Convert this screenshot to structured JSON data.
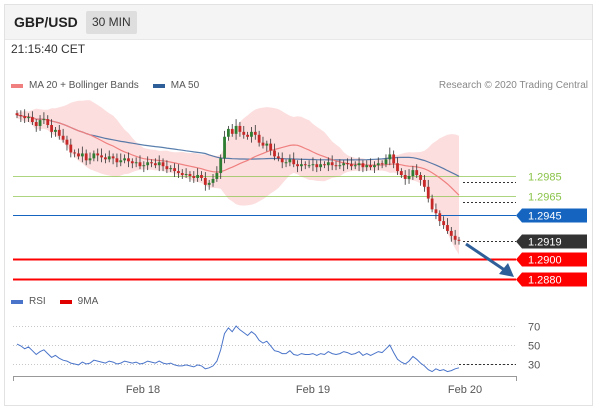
{
  "header": {
    "pair": "GBP/USD",
    "timeframe": "30 MIN"
  },
  "clock": "21:15:40 CET",
  "legend": [
    {
      "label": "MA 20 + Bollinger Bands",
      "color": "#f08080"
    },
    {
      "label": "MA 50",
      "color": "#2f5f98"
    }
  ],
  "credit": "Research © 2020 Trading Central",
  "rsi_legend": [
    {
      "label": "RSI",
      "color": "#4a74c9"
    },
    {
      "label": "9MA",
      "color": "#e00000"
    }
  ],
  "colors": {
    "up": "#2e7d32",
    "down": "#c62828",
    "band": "#fbd3d3",
    "ma20": "#f08080",
    "ma50": "#2f5f98",
    "support": "#ff0000",
    "resistance": "#8bc34a",
    "pivot": "#1565c0",
    "current": "#333333",
    "arrow": "#2f5f98"
  },
  "chart_data": [
    {
      "type": "candlestick",
      "x_tick_labels": [
        "Feb 18",
        "Feb 19",
        "Feb 20"
      ],
      "y_range": [
        1.287,
        1.3065
      ],
      "levels": [
        {
          "label": "1.2985",
          "value": 1.2985,
          "kind": "resistance",
          "color": "#8bc34a"
        },
        {
          "label": "1.2965",
          "value": 1.2965,
          "kind": "resistance",
          "color": "#8bc34a"
        },
        {
          "label": "1.2945",
          "value": 1.2945,
          "kind": "pivot",
          "color": "#1565c0"
        },
        {
          "label": "1.2919",
          "value": 1.2919,
          "kind": "current",
          "color": "#333333"
        },
        {
          "label": "1.2900",
          "value": 1.29,
          "kind": "support",
          "color": "#ff0000"
        },
        {
          "label": "1.2880",
          "value": 1.288,
          "kind": "support",
          "color": "#ff0000"
        }
      ],
      "close": [
        1.3047,
        1.3046,
        1.3044,
        1.3045,
        1.304,
        1.3036,
        1.3042,
        1.3043,
        1.3037,
        1.303,
        1.3032,
        1.3026,
        1.3022,
        1.3017,
        1.3009,
        1.3008,
        1.3005,
        1.3008,
        1.3001,
        1.3003,
        1.3008,
        1.3006,
        1.3004,
        1.3002,
        1.3005,
        1.3003,
        1.2999,
        1.3001,
        1.3003,
        1.3,
        1.2998,
        1.2999,
        1.2995,
        1.2996,
        1.2999,
        1.2998,
        1.2996,
        1.2999,
        1.2995,
        1.2992,
        1.2993,
        1.299,
        1.2988,
        1.2986,
        1.2987,
        1.2985,
        1.2983,
        1.2986,
        1.2983,
        1.2976,
        1.2978,
        1.2982,
        1.2988,
        1.3003,
        1.3025,
        1.3033,
        1.3028,
        1.3036,
        1.303,
        1.3027,
        1.3025,
        1.303,
        1.3027,
        1.3019,
        1.3016,
        1.3018,
        1.3011,
        1.3005,
        1.3003,
        1.2999,
        1.2999,
        1.3002,
        1.2997,
        1.2995,
        1.2997,
        1.2996,
        1.2996,
        1.2997,
        1.2994,
        1.2997,
        1.2996,
        1.2999,
        1.2996,
        1.2995,
        1.2996,
        1.2998,
        1.2997,
        1.2995,
        1.2996,
        1.2998,
        1.2994,
        1.2996,
        1.2994,
        1.2996,
        1.2998,
        1.2997,
        1.3002,
        1.3007,
        1.2998,
        1.299,
        1.2986,
        1.2982,
        1.2985,
        1.2991,
        1.2986,
        1.2981,
        1.2974,
        1.2962,
        1.2951,
        1.2947,
        1.2939,
        1.2935,
        1.2929,
        1.2924,
        1.292,
        1.2919
      ],
      "ma20_end": 1.2952,
      "ma50_end": 1.2984
    },
    {
      "type": "line",
      "title": "RSI",
      "y_tick_labels": [
        "70",
        "50",
        "30"
      ],
      "y_range": [
        20,
        80
      ],
      "series": [
        {
          "name": "RSI",
          "values": [
            51,
            49,
            46,
            48,
            44,
            40,
            43,
            45,
            41,
            37,
            39,
            36,
            34,
            33,
            31,
            30,
            29,
            32,
            30,
            31,
            34,
            33,
            32,
            31,
            33,
            32,
            30,
            31,
            33,
            32,
            31,
            32,
            30,
            31,
            33,
            32,
            31,
            33,
            31,
            30,
            31,
            29,
            28,
            28,
            29,
            28,
            27,
            29,
            28,
            25,
            26,
            28,
            33,
            45,
            62,
            68,
            64,
            70,
            66,
            63,
            60,
            64,
            61,
            55,
            52,
            54,
            49,
            44,
            43,
            41,
            41,
            44,
            40,
            39,
            41,
            40,
            40,
            41,
            39,
            41,
            40,
            43,
            41,
            40,
            41,
            43,
            42,
            40,
            41,
            43,
            39,
            41,
            39,
            41,
            43,
            42,
            46,
            50,
            42,
            35,
            32,
            30,
            33,
            38,
            35,
            31,
            28,
            24,
            22,
            25,
            23,
            24,
            22,
            23,
            25,
            26
          ]
        },
        {
          "name": "9MA",
          "values": []
        }
      ]
    }
  ]
}
